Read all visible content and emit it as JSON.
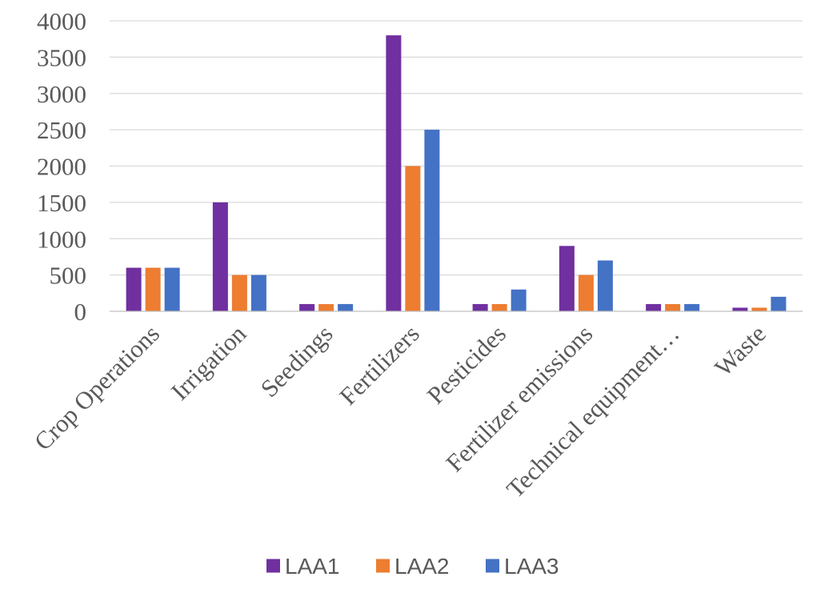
{
  "chart_data": {
    "type": "bar",
    "title": "",
    "xlabel": "",
    "ylabel": "",
    "ylim": [
      0,
      4000
    ],
    "yticks": [
      0,
      500,
      1000,
      1500,
      2000,
      2500,
      3000,
      3500,
      4000
    ],
    "grid": true,
    "legend_position": "bottom",
    "categories": [
      "Crop Operations",
      "Irrigation",
      "Seedings",
      "Fertilizers",
      "Pesticides",
      "Fertilizer emissions",
      "Technical equipment…",
      "Waste"
    ],
    "series": [
      {
        "name": "LAA1",
        "color": "#7030a0",
        "values": [
          600,
          1500,
          100,
          3800,
          100,
          900,
          100,
          50
        ]
      },
      {
        "name": "LAA2",
        "color": "#ed7d31",
        "values": [
          600,
          500,
          100,
          2000,
          100,
          500,
          100,
          50
        ]
      },
      {
        "name": "LAA3",
        "color": "#4472c4",
        "values": [
          600,
          500,
          100,
          2500,
          300,
          700,
          100,
          200
        ]
      }
    ]
  }
}
